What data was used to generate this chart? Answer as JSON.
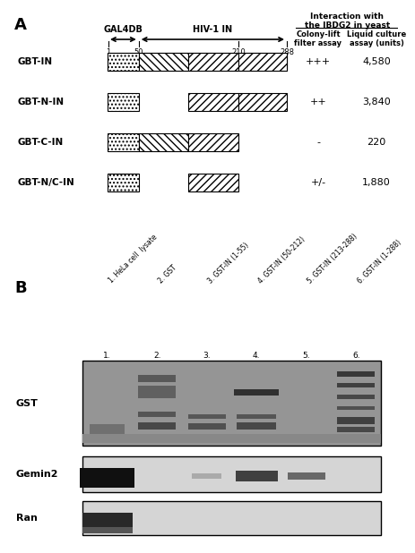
{
  "panel_A_label": "A",
  "panel_B_label": "B",
  "header_interaction": "Interaction with\nthe IBDG2 in yeast",
  "header_colony": "Colony-lift\nfilter assay",
  "header_liquid": "Liquid culture\nassay (units)",
  "gal4db_label": "GAL4DB",
  "hiv_label": "HIV-1 IN",
  "tick_labels": [
    "1",
    "50",
    "210",
    "288"
  ],
  "rows": [
    {
      "name": "GBT-IN",
      "colony": "+++",
      "liquid": "4,580"
    },
    {
      "name": "GBT-N-IN",
      "colony": "++",
      "liquid": "3,840"
    },
    {
      "name": "GBT-C-IN",
      "colony": "-",
      "liquid": "220"
    },
    {
      "name": "GBT-N/C-IN",
      "colony": "+/-",
      "liquid": "1,880"
    }
  ],
  "blot_labels": [
    "GST",
    "Gemin2",
    "Ran"
  ],
  "lane_labels": [
    "1. HeLa cell  lysate",
    "2. GST",
    "3. GST-IN (1-55)",
    "4. GST-IN (50-212)",
    "5. GST-IN (213-288)",
    "6. GST-IN (1-288)"
  ],
  "bg_color": "#ffffff"
}
